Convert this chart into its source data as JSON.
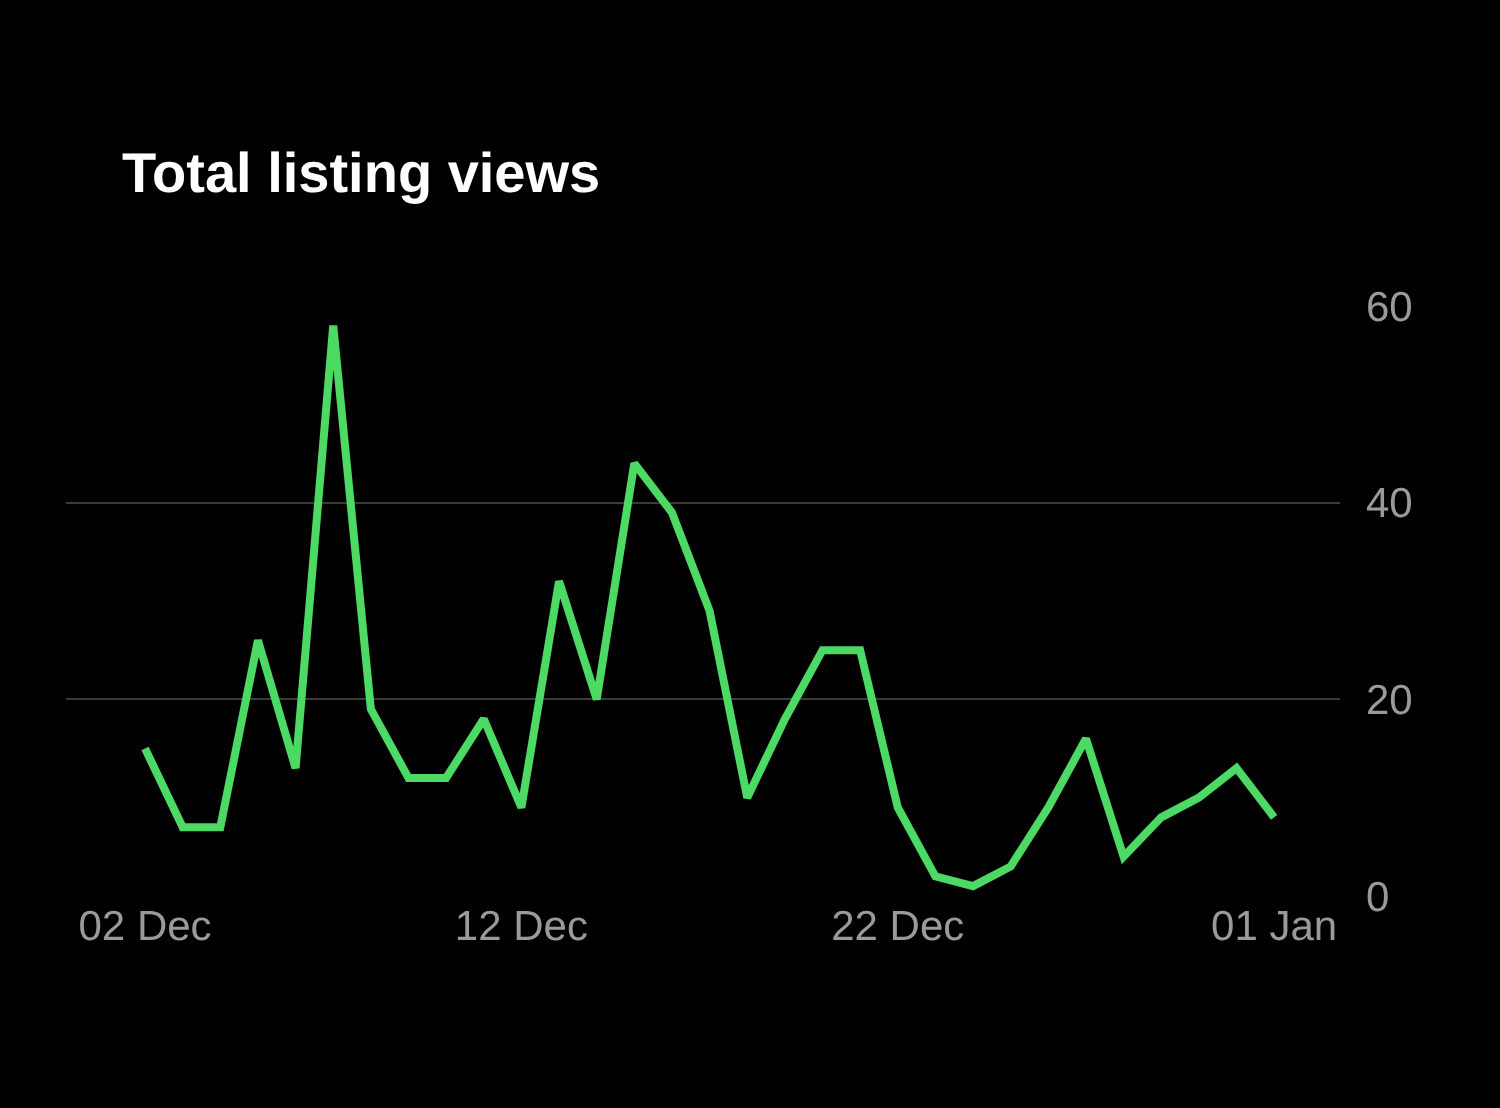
{
  "chart_data": {
    "type": "line",
    "title": "Total listing views",
    "categories": [
      "02 Dec",
      null,
      null,
      null,
      null,
      null,
      null,
      null,
      null,
      null,
      "12 Dec",
      null,
      null,
      null,
      null,
      null,
      null,
      null,
      null,
      null,
      "22 Dec",
      null,
      null,
      null,
      null,
      null,
      null,
      null,
      null,
      null,
      "01 Jan"
    ],
    "series": [
      {
        "color": "#4cd964",
        "values": [
          15,
          7,
          7,
          26,
          13,
          58,
          19,
          12,
          12,
          18,
          9,
          32,
          20,
          44,
          39,
          29,
          10,
          18,
          25,
          25,
          9,
          2,
          1,
          3,
          9,
          16,
          4,
          8,
          10,
          13,
          8
        ]
      }
    ],
    "ylim": [
      0,
      60
    ],
    "yticks": [
      0,
      20,
      40,
      60
    ],
    "grid": "y",
    "legend": false,
    "marker": "none",
    "line_style": "solid"
  }
}
